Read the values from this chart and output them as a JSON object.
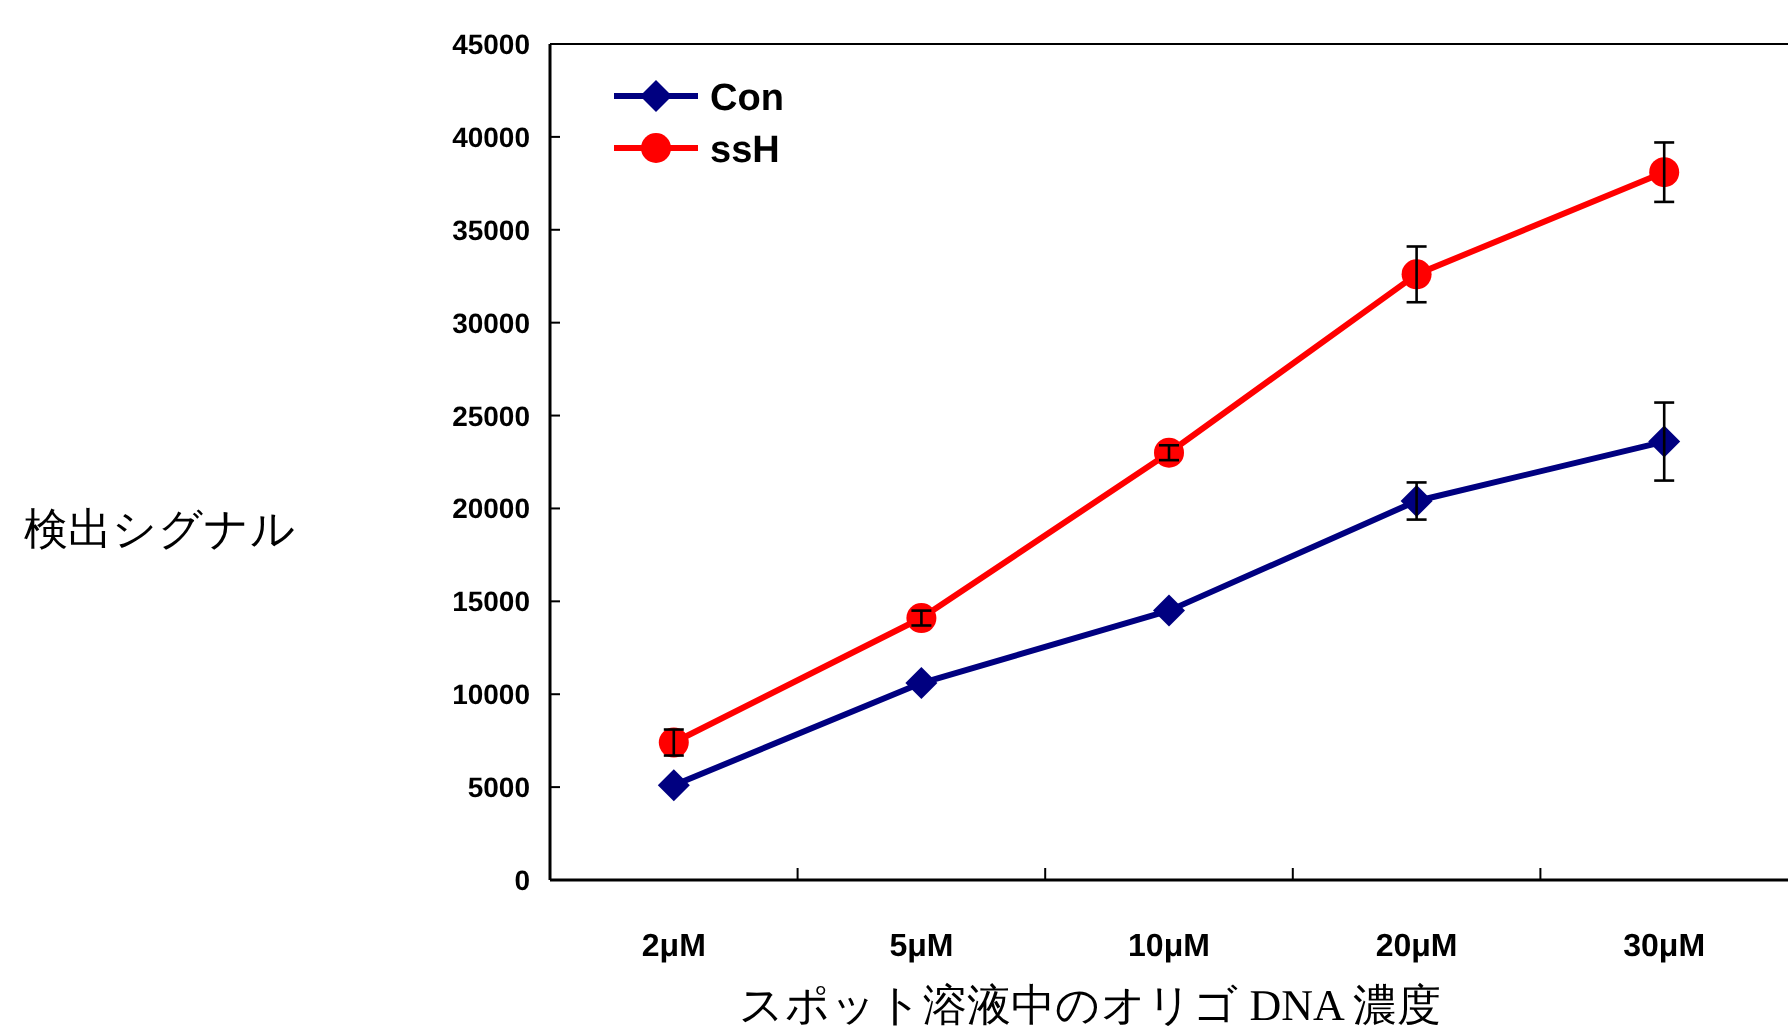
{
  "chart_data": {
    "type": "line",
    "xlabel": "スポット溶液中のオリゴ DNA 濃度",
    "ylabel": "検出シグナル",
    "categories": [
      "2μM",
      "5μM",
      "10μM",
      "20μM",
      "30μM"
    ],
    "series": [
      {
        "name": "Con",
        "color": "#000080",
        "marker": "diamond",
        "values": [
          5100,
          10600,
          14500,
          20400,
          23600
        ],
        "errors": [
          null,
          null,
          null,
          1000,
          2100
        ]
      },
      {
        "name": "ssH",
        "color": "#ff0000",
        "marker": "circle",
        "values": [
          7400,
          14100,
          23000,
          32600,
          38100
        ],
        "errors": [
          700,
          400,
          400,
          1500,
          1600
        ]
      }
    ],
    "ylim": [
      0,
      45000
    ],
    "yticks": [
      0,
      5000,
      10000,
      15000,
      20000,
      25000,
      30000,
      35000,
      40000,
      45000
    ],
    "grid": false,
    "legend": "top left",
    "line_style": "solid"
  }
}
